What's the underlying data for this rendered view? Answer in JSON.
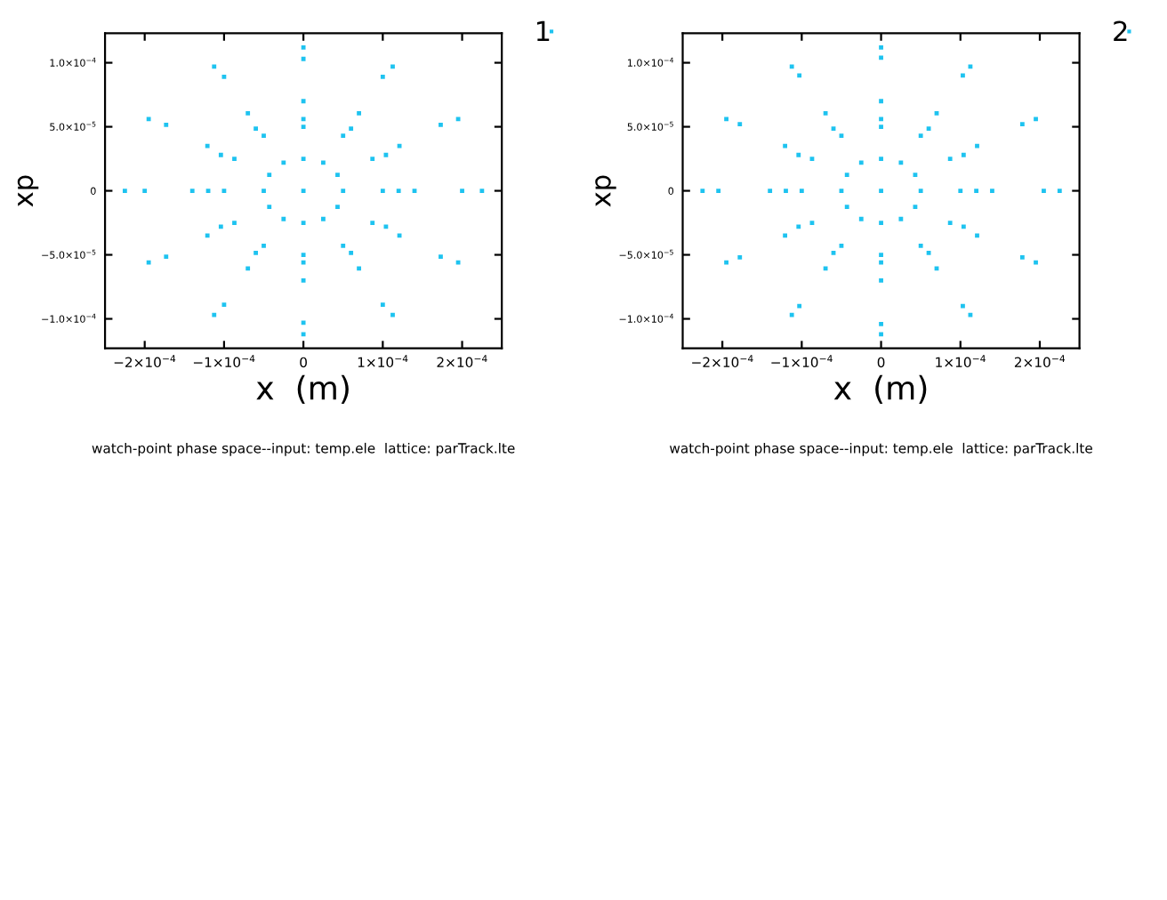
{
  "chart_data": [
    {
      "type": "scatter",
      "xlabel": "x  (m)",
      "ylabel": "xp",
      "annotations": [
        "watch-point phase space--input: temp.ele  lattice: parTrack.lte"
      ],
      "xlim": [
        -0.00025,
        0.00025
      ],
      "ylim": [
        -0.000123,
        0.000123
      ],
      "xticks": [
        {
          "value": -0.0002,
          "label": "−2×10$^{−4}$"
        },
        {
          "value": -0.0001,
          "label": "−1×10$^{−4}$"
        },
        0,
        {
          "value": 0.0001,
          "label": "1×10$^{−4}$"
        },
        {
          "value": 0.0002,
          "label": "2×10$^{−4}$"
        }
      ],
      "yticks": [
        {
          "value": -0.0001,
          "label": "−1.0×10$^{−4}$"
        },
        {
          "value": -5e-05,
          "label": "−5.0×10$^{−5}$"
        },
        0,
        {
          "value": 5e-05,
          "label": "5.0×10$^{−5}$"
        },
        {
          "value": 0.0001,
          "label": "1.0×10$^{−4}$"
        }
      ],
      "grid": false,
      "legend": "top right",
      "marker": "square",
      "series": [
        {
          "name": "1",
          "color": "#1ec3f0",
          "x": [
            0,
            5e-05,
            4.3e-05,
            2.5e-05,
            0,
            -2.5e-05,
            -4.3e-05,
            -5e-05,
            -4.3e-05,
            -2.5e-05,
            0,
            2.5e-05,
            4.3e-05,
            0.0001,
            8.7e-05,
            5e-05,
            0,
            -5e-05,
            -8.7e-05,
            -0.0001,
            -8.7e-05,
            -5e-05,
            0,
            5e-05,
            8.7e-05,
            0.00012,
            0.000104,
            6e-05,
            0,
            -6e-05,
            -0.000104,
            -0.00012,
            -0.000104,
            -6e-05,
            0,
            6e-05,
            0.000104,
            0.00014,
            0.000121,
            7e-05,
            0,
            -7e-05,
            -0.000121,
            -0.00014,
            -0.000121,
            -7e-05,
            0,
            7e-05,
            0.000121,
            0.0002,
            0.000173,
            0.0001,
            0,
            -0.0001,
            -0.000173,
            -0.0002,
            -0.000173,
            -0.0001,
            0,
            0.0001,
            0.000173,
            0.000225,
            0.000195,
            0.0001125,
            0,
            -0.0001125,
            -0.000195,
            -0.000225,
            -0.000195,
            -0.0001125,
            0,
            0.0001125,
            0.000195
          ],
          "values": [
            0,
            0,
            1.25e-05,
            2.2e-05,
            2.5e-05,
            2.2e-05,
            1.25e-05,
            0,
            -1.25e-05,
            -2.2e-05,
            -2.5e-05,
            -2.2e-05,
            -1.25e-05,
            0,
            2.5e-05,
            4.3e-05,
            5e-05,
            4.3e-05,
            2.5e-05,
            0,
            -2.5e-05,
            -4.3e-05,
            -5e-05,
            -4.3e-05,
            -2.5e-05,
            0,
            2.8e-05,
            4.85e-05,
            5.6e-05,
            4.85e-05,
            2.8e-05,
            0,
            -2.8e-05,
            -4.85e-05,
            -5.6e-05,
            -4.85e-05,
            -2.8e-05,
            0,
            3.5e-05,
            6.06e-05,
            7e-05,
            6.06e-05,
            3.5e-05,
            0,
            -3.5e-05,
            -6.06e-05,
            -7e-05,
            -6.06e-05,
            -3.5e-05,
            0,
            5.15e-05,
            8.9e-05,
            0.000103,
            8.9e-05,
            5.15e-05,
            0,
            -5.15e-05,
            -8.9e-05,
            -0.000103,
            -8.9e-05,
            -5.15e-05,
            0,
            5.6e-05,
            9.7e-05,
            0.000112,
            9.7e-05,
            5.6e-05,
            0,
            -5.6e-05,
            -9.7e-05,
            -0.000112,
            -9.7e-05,
            -5.6e-05
          ]
        }
      ]
    },
    {
      "type": "scatter",
      "xlabel": "x  (m)",
      "ylabel": "xp",
      "annotations": [
        "watch-point phase space--input: temp.ele  lattice: parTrack.lte"
      ],
      "xlim": [
        -0.00025,
        0.00025
      ],
      "ylim": [
        -0.000123,
        0.000123
      ],
      "xticks": [
        {
          "value": -0.0002,
          "label": "−2×10$^{−4}$"
        },
        {
          "value": -0.0001,
          "label": "−1×10$^{−4}$"
        },
        0,
        {
          "value": 0.0001,
          "label": "1×10$^{−4}$"
        },
        {
          "value": 0.0002,
          "label": "2×10$^{−4}$"
        }
      ],
      "yticks": [
        {
          "value": -0.0001,
          "label": "−1.0×10$^{−4}$"
        },
        {
          "value": -5e-05,
          "label": "−5.0×10$^{−5}$"
        },
        0,
        {
          "value": 5e-05,
          "label": "5.0×10$^{−5}$"
        },
        {
          "value": 0.0001,
          "label": "1.0×10$^{−4}$"
        }
      ],
      "grid": false,
      "legend": "top right",
      "marker": "square",
      "series": [
        {
          "name": "2",
          "color": "#1ec3f0",
          "x": [
            0,
            5e-05,
            4.3e-05,
            2.5e-05,
            0,
            -2.5e-05,
            -4.3e-05,
            -5e-05,
            -4.3e-05,
            -2.5e-05,
            0,
            2.5e-05,
            4.3e-05,
            0.0001,
            8.7e-05,
            5e-05,
            0,
            -5e-05,
            -8.7e-05,
            -0.0001,
            -8.7e-05,
            -5e-05,
            0,
            5e-05,
            8.7e-05,
            0.00012,
            0.000104,
            6e-05,
            0,
            -6e-05,
            -0.000104,
            -0.00012,
            -0.000104,
            -6e-05,
            0,
            6e-05,
            0.000104,
            0.00014,
            0.000121,
            7e-05,
            0,
            -7e-05,
            -0.000121,
            -0.00014,
            -0.000121,
            -7e-05,
            0,
            7e-05,
            0.000121,
            0.000205,
            0.000178,
            0.000103,
            0,
            -0.000103,
            -0.000178,
            -0.000205,
            -0.000178,
            -0.000103,
            0,
            0.000103,
            0.000178,
            0.000225,
            0.000195,
            0.0001125,
            0,
            -0.0001125,
            -0.000195,
            -0.000225,
            -0.000195,
            -0.0001125,
            0,
            0.0001125,
            0.000195
          ],
          "values": [
            0,
            0,
            1.25e-05,
            2.2e-05,
            2.5e-05,
            2.2e-05,
            1.25e-05,
            0,
            -1.25e-05,
            -2.2e-05,
            -2.5e-05,
            -2.2e-05,
            -1.25e-05,
            0,
            2.5e-05,
            4.3e-05,
            5e-05,
            4.3e-05,
            2.5e-05,
            0,
            -2.5e-05,
            -4.3e-05,
            -5e-05,
            -4.3e-05,
            -2.5e-05,
            0,
            2.8e-05,
            4.85e-05,
            5.6e-05,
            4.85e-05,
            2.8e-05,
            0,
            -2.8e-05,
            -4.85e-05,
            -5.6e-05,
            -4.85e-05,
            -2.8e-05,
            0,
            3.5e-05,
            6.06e-05,
            7e-05,
            6.06e-05,
            3.5e-05,
            0,
            -3.5e-05,
            -6.06e-05,
            -7e-05,
            -6.06e-05,
            -3.5e-05,
            0,
            5.2e-05,
            9e-05,
            0.000104,
            9e-05,
            5.2e-05,
            0,
            -5.2e-05,
            -9e-05,
            -0.000104,
            -9e-05,
            -5.2e-05,
            0,
            5.6e-05,
            9.7e-05,
            0.000112,
            9.7e-05,
            5.6e-05,
            0,
            -5.6e-05,
            -9.7e-05,
            -0.000112,
            -9.7e-05,
            -5.6e-05
          ]
        }
      ]
    }
  ]
}
